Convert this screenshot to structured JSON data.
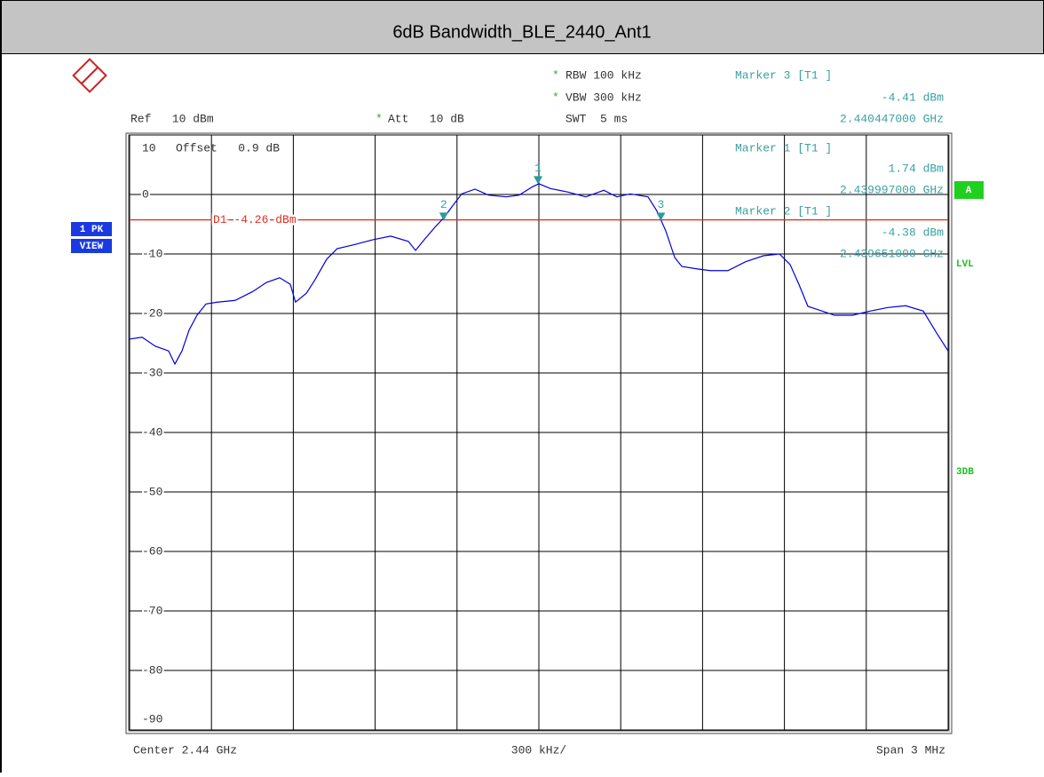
{
  "chart_data": {
    "type": "line",
    "title": "6dB Bandwidth_BLE_2440_Ant1",
    "settings": {
      "rbw": {
        "flag": "*",
        "text": "RBW  100 kHz"
      },
      "vbw": {
        "flag": "*",
        "text": "VBW  300 kHz"
      },
      "ref": "Ref   10 dBm",
      "att": {
        "flag": "*",
        "text": "Att   10 dB"
      },
      "swt": "SWT  5 ms",
      "offset": "Offset   0.9 dB"
    },
    "side_labels": {
      "trace": "1 PK",
      "view": "VIEW",
      "channel": "A",
      "lvl": "LVL",
      "db3": "3DB"
    },
    "markers": [
      {
        "label": "3",
        "name": "Marker 3 [T1 ]",
        "x": 2.440447,
        "x_label": "2.440447000 GHz",
        "y": -4.41,
        "y_label": "-4.41 dBm"
      },
      {
        "label": "1",
        "name": "Marker 1 [T1 ]",
        "x": 2.439997,
        "x_label": "2.439997000 GHz",
        "y": 1.74,
        "y_label": "1.74 dBm"
      },
      {
        "label": "2",
        "name": "Marker 2 [T1 ]",
        "x": 2.439651,
        "x_label": "2.439651000 GHz",
        "y": -4.38,
        "y_label": "-4.38 dBm"
      }
    ],
    "display_line": {
      "label": "D1 -4.26 dBm",
      "value": -4.26,
      "color": "#e03020"
    },
    "x_axis": {
      "center": "Center 2.44 GHz",
      "div": "300 kHz/",
      "span": "Span 3 MHz"
    },
    "color": "#0000dd",
    "x": [
      2.4385,
      2.438546,
      2.438594,
      2.438643,
      2.438666,
      2.438692,
      2.438718,
      2.438747,
      2.43878,
      2.438822,
      2.438887,
      2.438952,
      2.439001,
      2.43905,
      2.439089,
      2.439108,
      2.439148,
      2.43918,
      2.439222,
      2.439261,
      2.439326,
      2.439392,
      2.439457,
      2.439522,
      2.439548,
      2.43958,
      2.439619,
      2.439652,
      2.439684,
      2.439717,
      2.439766,
      2.439815,
      2.43988,
      2.439928,
      2.439977,
      2.44,
      2.440042,
      2.440107,
      2.440172,
      2.440238,
      2.440286,
      2.440335,
      2.4404,
      2.440433,
      2.440465,
      2.440498,
      2.440524,
      2.440579,
      2.440628,
      2.440693,
      2.440758,
      2.440823,
      2.440882,
      2.440921,
      2.440953,
      2.440986,
      2.441019,
      2.441084,
      2.441149,
      2.441214,
      2.441279,
      2.441344,
      2.441409,
      2.441458,
      2.4415
    ],
    "values": [
      -24.3,
      -24.0,
      -25.5,
      -26.3,
      -28.5,
      -26.3,
      -22.8,
      -20.3,
      -18.4,
      -18.1,
      -17.8,
      -16.3,
      -14.8,
      -14.0,
      -15.1,
      -18.1,
      -16.6,
      -14.3,
      -10.9,
      -9.1,
      -8.4,
      -7.6,
      -7.0,
      -7.9,
      -9.4,
      -7.6,
      -5.5,
      -3.9,
      -1.9,
      0.1,
      0.9,
      -0.1,
      -0.4,
      -0.1,
      1.3,
      1.8,
      1.0,
      0.4,
      -0.4,
      0.7,
      -0.4,
      0.1,
      -0.4,
      -2.8,
      -6.1,
      -10.6,
      -12.1,
      -12.5,
      -12.8,
      -12.8,
      -11.3,
      -10.3,
      -10.0,
      -11.8,
      -15.1,
      -18.8,
      -19.3,
      -20.3,
      -20.3,
      -19.6,
      -19.0,
      -18.7,
      -19.6,
      -23.3,
      -26.3
    ],
    "xlim": [
      2.4385,
      2.4415
    ],
    "xticks": [
      2.4385,
      2.4388,
      2.4391,
      2.4394,
      2.4397,
      2.44,
      2.4403,
      2.4406,
      2.4409,
      2.4412,
      2.4415
    ],
    "ylim": [
      -90,
      10
    ],
    "yticks": [
      10,
      0,
      -10,
      -20,
      -30,
      -40,
      -50,
      -60,
      -70,
      -80,
      -90
    ],
    "grid": true
  }
}
